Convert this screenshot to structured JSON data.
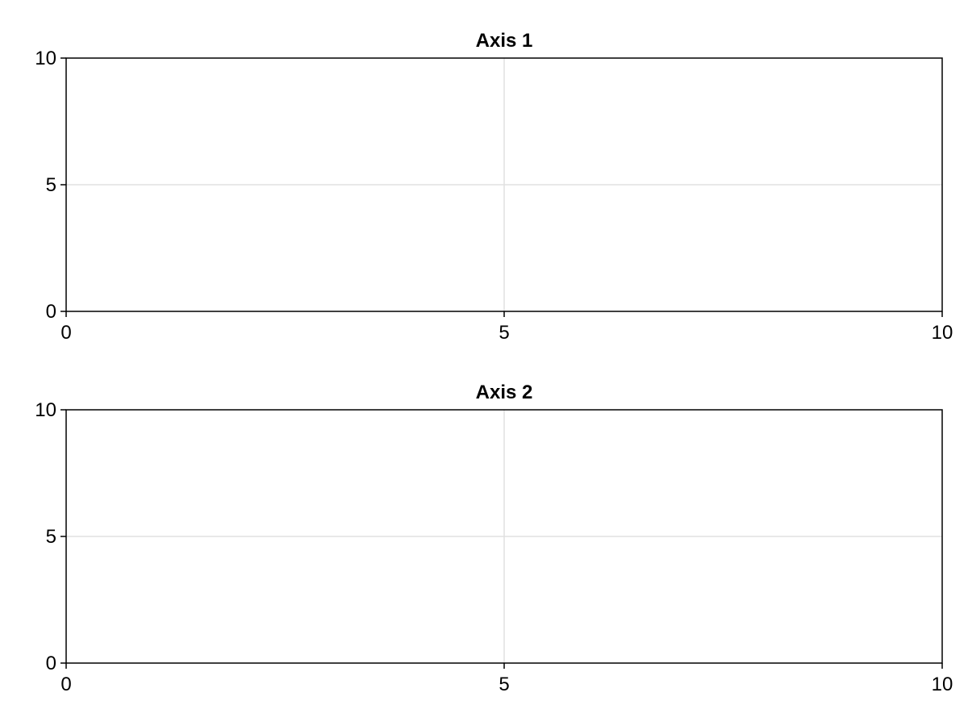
{
  "chart_data": [
    {
      "type": "scatter",
      "title": "Axis 1",
      "xlabel": "",
      "ylabel": "",
      "xlim": [
        0,
        10
      ],
      "ylim": [
        0,
        10
      ],
      "xticks": [
        0,
        5,
        10
      ],
      "yticks": [
        0,
        5,
        10
      ],
      "grid": true,
      "series": []
    },
    {
      "type": "scatter",
      "title": "Axis 2",
      "xlabel": "",
      "ylabel": "",
      "xlim": [
        0,
        10
      ],
      "ylim": [
        0,
        10
      ],
      "xticks": [
        0,
        5,
        10
      ],
      "yticks": [
        0,
        5,
        10
      ],
      "grid": true,
      "series": []
    }
  ]
}
